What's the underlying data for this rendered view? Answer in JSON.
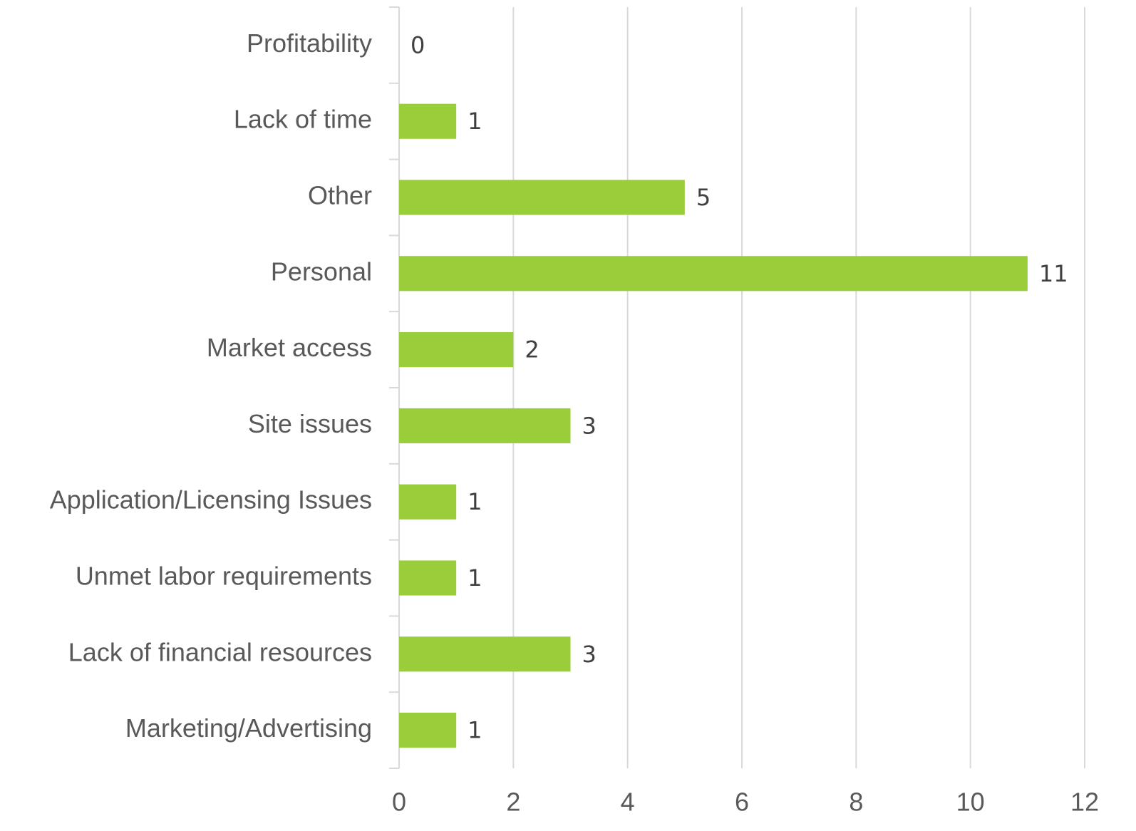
{
  "chart_data": {
    "type": "bar",
    "orientation": "horizontal",
    "categories": [
      "Profitability",
      "Lack of time",
      "Other",
      "Personal",
      "Market access",
      "Site issues",
      "Application/Licensing Issues",
      "Unmet labor requirements",
      "Lack of financial resources",
      "Marketing/Advertising"
    ],
    "values": [
      0,
      1,
      5,
      11,
      2,
      3,
      1,
      1,
      3,
      1
    ],
    "color": "#9acd3a",
    "xlim": [
      0,
      12
    ],
    "xticks": [
      0,
      2,
      4,
      6,
      8,
      10,
      12
    ],
    "grid": true
  }
}
